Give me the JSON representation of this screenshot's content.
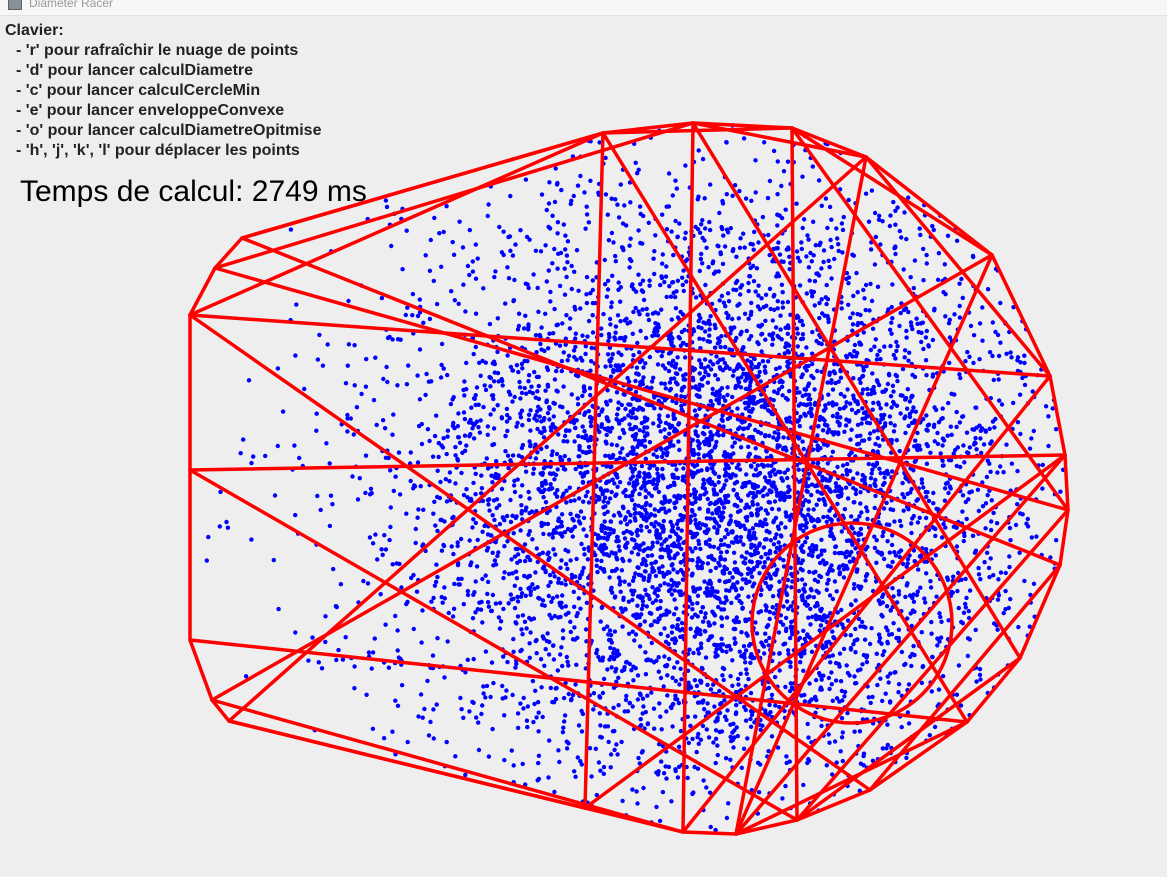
{
  "window": {
    "title": "Diameter Racer"
  },
  "help": {
    "heading": "Clavier:",
    "items": [
      "- 'r' pour rafraîchir le nuage de points",
      "- 'd' pour lancer calculDiametre",
      "- 'c' pour lancer calculCercleMin",
      "- 'e' pour lancer enveloppeConvexe",
      "- 'o' pour lancer calculDiametreOpitmise",
      "- 'h', 'j', 'k', 'l' pour déplacer les points"
    ]
  },
  "timing": {
    "label": "Temps de calcul:",
    "value": "2749",
    "unit": "ms"
  },
  "colors": {
    "points": "#0000ff",
    "lines": "#ff0000",
    "background": "#eeeeee"
  }
}
